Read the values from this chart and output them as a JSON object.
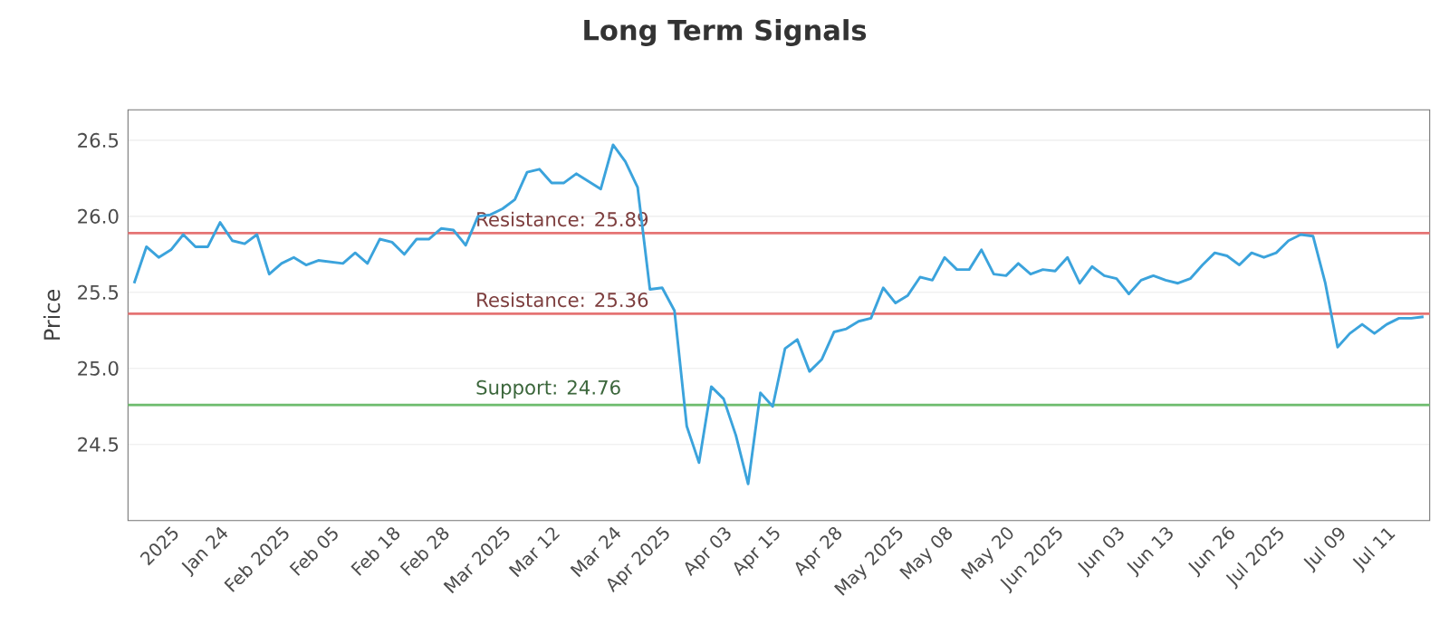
{
  "chart_data": {
    "type": "line",
    "title": "Long Term Signals",
    "ylabel": "Price",
    "categories": [
      null,
      null,
      null,
      "2025",
      null,
      null,
      null,
      "Jan 24",
      null,
      null,
      null,
      null,
      "Feb 2025",
      null,
      null,
      null,
      "Feb 05",
      null,
      null,
      null,
      null,
      "Feb 18",
      null,
      null,
      null,
      "Feb 28",
      null,
      null,
      null,
      null,
      "Mar 2025",
      null,
      null,
      null,
      "Mar 12",
      null,
      null,
      null,
      null,
      "Mar 24",
      null,
      null,
      null,
      "Apr 2025",
      null,
      null,
      null,
      null,
      "Apr 03",
      null,
      null,
      null,
      "Apr 15",
      null,
      null,
      null,
      null,
      "Apr 28",
      null,
      null,
      null,
      null,
      "May 2025",
      null,
      null,
      null,
      "May 08",
      null,
      null,
      null,
      null,
      "May 20",
      null,
      null,
      null,
      "Jun 2025",
      null,
      null,
      null,
      null,
      "Jun 03",
      null,
      null,
      null,
      "Jun 13",
      null,
      null,
      null,
      null,
      "Jun 26",
      null,
      null,
      null,
      "Jul 2025",
      null,
      null,
      null,
      null,
      "Jul 09",
      null,
      null,
      null,
      "Jul 11",
      null,
      null,
      null
    ],
    "values": [
      25.56,
      25.8,
      25.73,
      25.78,
      25.88,
      25.8,
      25.8,
      25.96,
      25.84,
      25.82,
      25.88,
      25.62,
      25.69,
      25.73,
      25.68,
      25.71,
      25.7,
      25.69,
      25.76,
      25.69,
      25.85,
      25.83,
      25.75,
      25.85,
      25.85,
      25.92,
      25.91,
      25.81,
      26.0,
      26.01,
      26.05,
      26.11,
      26.29,
      26.31,
      26.22,
      26.22,
      26.28,
      26.23,
      26.18,
      26.47,
      26.36,
      26.19,
      25.52,
      25.53,
      25.38,
      24.62,
      24.38,
      24.88,
      24.8,
      24.56,
      24.24,
      24.84,
      24.75,
      25.13,
      25.19,
      24.98,
      25.06,
      25.24,
      25.26,
      25.31,
      25.33,
      25.53,
      25.43,
      25.48,
      25.6,
      25.58,
      25.73,
      25.65,
      25.65,
      25.78,
      25.62,
      25.61,
      25.69,
      25.62,
      25.65,
      25.64,
      25.73,
      25.56,
      25.67,
      25.61,
      25.59,
      25.49,
      25.58,
      25.61,
      25.58,
      25.56,
      25.59,
      25.68,
      25.76,
      25.74,
      25.68,
      25.76,
      25.73,
      25.76,
      25.84,
      25.88,
      25.87,
      25.56,
      25.14,
      25.23,
      25.29,
      25.23,
      25.29,
      25.33,
      25.33,
      25.34
    ],
    "color": "#3ba3dc",
    "marker": "none",
    "line_style": "solid",
    "ylim": [
      24.0,
      26.7
    ],
    "yticks": [
      24.5,
      {
        "value": 25.0,
        "label": "25.0"
      },
      25.5,
      {
        "value": 26.0,
        "label": "26.0"
      },
      26.5
    ],
    "grid": "y",
    "ref_lines": [
      {
        "axis": "y",
        "value": 25.89,
        "label": "Resistance: 25.89",
        "color": "#e57373"
      },
      {
        "axis": "y",
        "value": 25.36,
        "label": "Resistance: 25.36",
        "color": "#e57373"
      },
      {
        "axis": "y",
        "value": 24.76,
        "label": "Support: 24.76",
        "color": "#6dbb6d"
      }
    ]
  }
}
